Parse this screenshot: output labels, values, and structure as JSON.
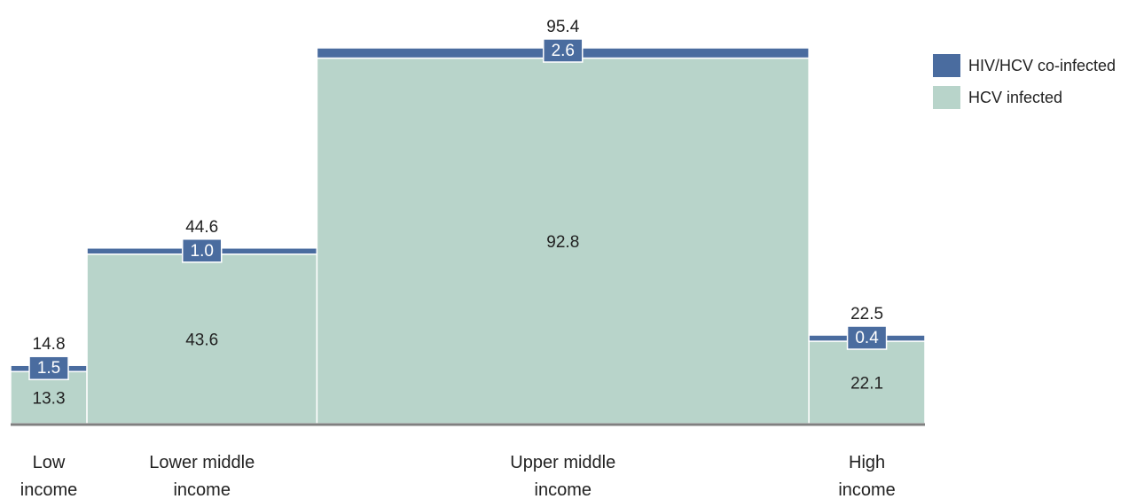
{
  "chart_data": {
    "type": "bar",
    "subtype": "marimekko-stacked",
    "categories": [
      "Low income",
      "Lower middle income",
      "Upper middle income",
      "High income"
    ],
    "category_lines": [
      [
        "Low",
        "income"
      ],
      [
        "Lower middle",
        "income"
      ],
      [
        "Upper middle",
        "income"
      ],
      [
        "High",
        "income"
      ]
    ],
    "totals": [
      14.8,
      44.6,
      95.4,
      22.5
    ],
    "series": [
      {
        "name": "HCV infected",
        "values": [
          13.3,
          43.6,
          92.8,
          22.1
        ],
        "color": "#b8d4ca"
      },
      {
        "name": "HIV/HCV co-infected",
        "values": [
          1.5,
          1.0,
          2.6,
          0.4
        ],
        "color": "#4a6c9f"
      }
    ],
    "value_labels": {
      "HCV infected": [
        "13.3",
        "43.6",
        "92.8",
        "22.1"
      ],
      "HIV/HCV co-infected": [
        "1.5",
        "1.0",
        "2.6",
        "0.4"
      ],
      "totals": [
        "14.8",
        "44.6",
        "95.4",
        "22.5"
      ]
    },
    "legend": {
      "position": "top-right",
      "entries": [
        {
          "label": "HIV/HCV co-infected",
          "color": "#4a6c9f"
        },
        {
          "label": "HCV infected",
          "color": "#b8d4ca"
        }
      ]
    },
    "xlabel": "",
    "ylabel": "",
    "grid": false
  }
}
